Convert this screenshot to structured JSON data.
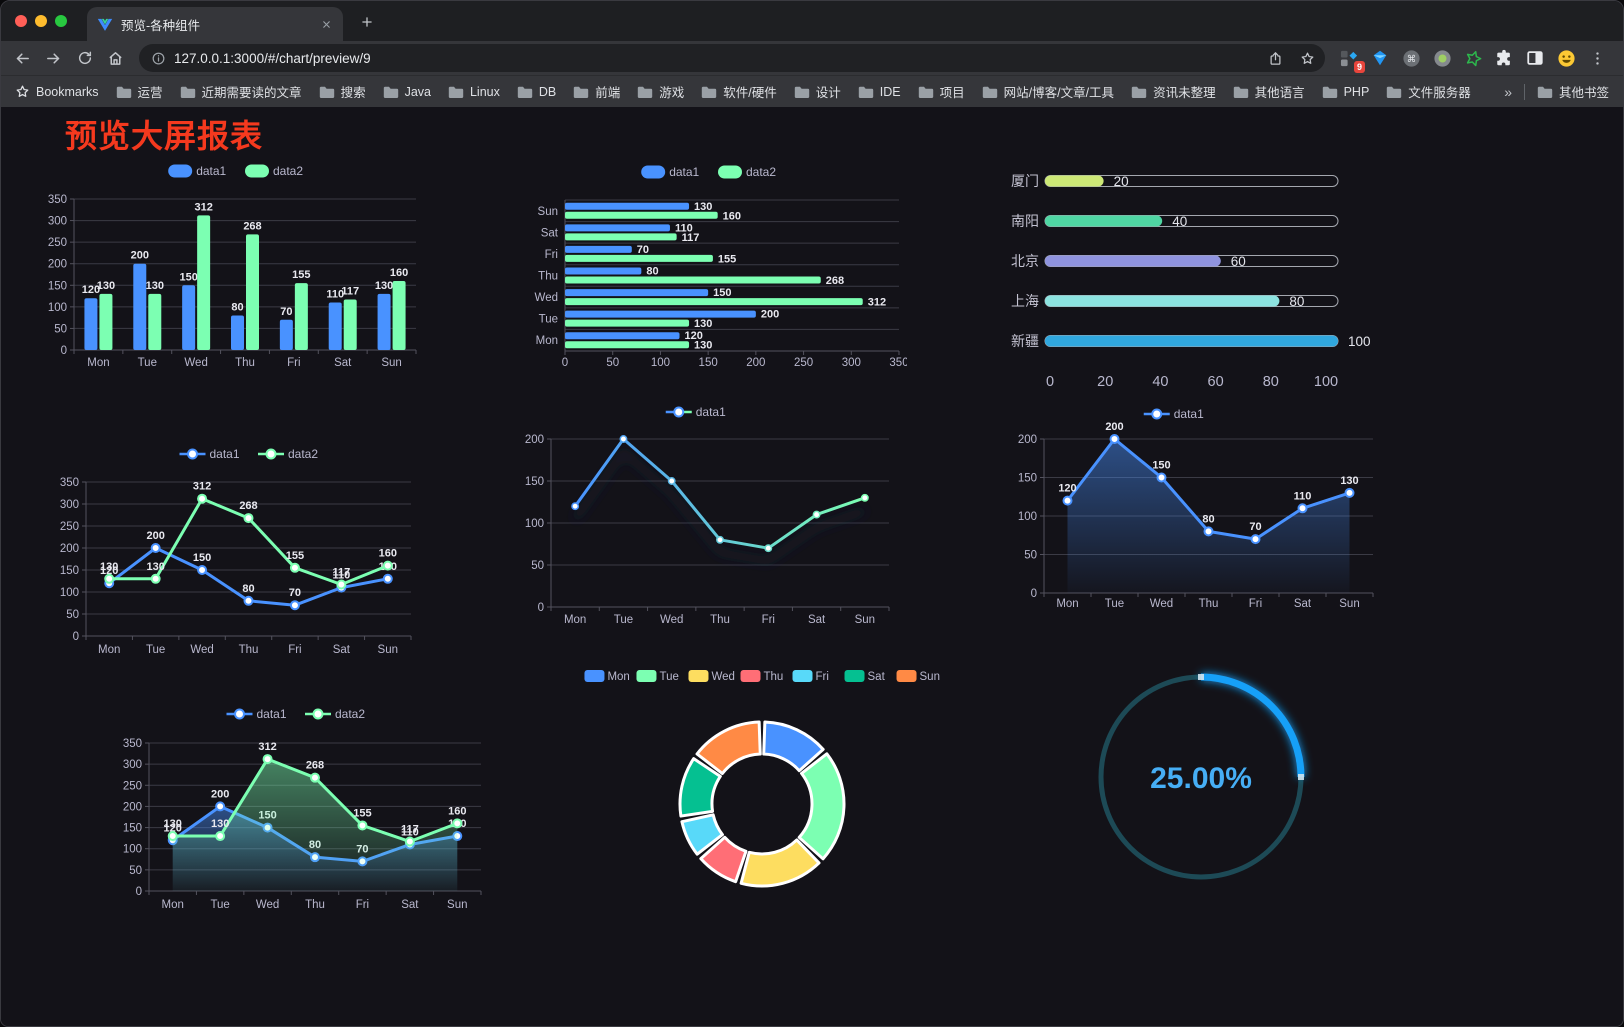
{
  "browser": {
    "tab_title": "预览-各种组件",
    "url": "127.0.0.1:3000/#/chart/preview/9",
    "bookmarks_label": "Bookmarks",
    "bookmarks": [
      "运营",
      "近期需要读的文章",
      "搜索",
      "Java",
      "Linux",
      "DB",
      "前端",
      "游戏",
      "软件/硬件",
      "设计",
      "IDE",
      "项目",
      "网站/博客/文章/工具",
      "资讯未整理",
      "其他语言",
      "PHP",
      "文件服务器"
    ],
    "overflow_chevron": "»",
    "other_bookmarks": "其他书签",
    "extensions_badge": "9",
    "icons": [
      "back-icon",
      "forward-icon",
      "reload-icon",
      "home-icon",
      "site-info-icon",
      "share-icon",
      "bookmark-star-icon",
      "extension-grid-icon",
      "gem-extension-icon",
      "command-extension-icon",
      "dot-extension-icon",
      "star-extension-icon",
      "puzzle-extension-icon",
      "reader-extension-icon",
      "emoji-extension-icon",
      "menu-icon",
      "folder-icon"
    ]
  },
  "page": {
    "title": "预览大屏报表",
    "title_color": "#f5391e",
    "background": "#131218"
  },
  "chart_data": [
    {
      "id": "bar-vertical",
      "type": "bar",
      "categories": [
        "Mon",
        "Tue",
        "Wed",
        "Thu",
        "Fri",
        "Sat",
        "Sun"
      ],
      "series": [
        {
          "name": "data1",
          "color": "#4992ff",
          "values": [
            120,
            200,
            150,
            80,
            70,
            110,
            130
          ]
        },
        {
          "name": "data2",
          "color": "#7cffb2",
          "values": [
            130,
            130,
            312,
            268,
            155,
            117,
            160
          ]
        }
      ],
      "ylim": [
        0,
        350
      ],
      "ytick_step": 50,
      "grid": true,
      "legend_position": "top",
      "value_labels": true
    },
    {
      "id": "bar-horizontal",
      "type": "bar",
      "orientation": "horizontal",
      "categories": [
        "Mon",
        "Tue",
        "Wed",
        "Thu",
        "Fri",
        "Sat",
        "Sun"
      ],
      "series": [
        {
          "name": "data1",
          "color": "#4992ff",
          "values": [
            120,
            200,
            150,
            80,
            70,
            110,
            130
          ]
        },
        {
          "name": "data2",
          "color": "#7cffb2",
          "values": [
            130,
            130,
            312,
            268,
            155,
            117,
            160
          ]
        }
      ],
      "xlim": [
        0,
        350
      ],
      "xtick_step": 50,
      "grid": true,
      "legend_position": "top",
      "value_labels": true
    },
    {
      "id": "progress-bars",
      "type": "bar",
      "variant": "progress",
      "rows": [
        {
          "label": "厦门",
          "value": 20,
          "color": "#cde876"
        },
        {
          "label": "南阳",
          "value": 40,
          "color": "#4fd6a3"
        },
        {
          "label": "北京",
          "value": 60,
          "color": "#8f93de"
        },
        {
          "label": "上海",
          "value": 80,
          "color": "#8ce3e0"
        },
        {
          "label": "新疆",
          "value": 100,
          "color": "#30a7de"
        }
      ],
      "xlim": [
        0,
        100
      ],
      "xticks": [
        0,
        20,
        40,
        60,
        80,
        100
      ]
    },
    {
      "id": "line-two",
      "type": "line",
      "categories": [
        "Mon",
        "Tue",
        "Wed",
        "Thu",
        "Fri",
        "Sat",
        "Sun"
      ],
      "series": [
        {
          "name": "data1",
          "color": "#4992ff",
          "values": [
            120,
            200,
            150,
            80,
            70,
            110,
            130
          ]
        },
        {
          "name": "data2",
          "color": "#7cffb2",
          "values": [
            130,
            130,
            312,
            268,
            155,
            117,
            160
          ]
        }
      ],
      "ylim": [
        0,
        350
      ],
      "ytick_step": 50,
      "grid": true,
      "legend_position": "top",
      "value_labels": true
    },
    {
      "id": "line-gradient",
      "type": "line",
      "categories": [
        "Mon",
        "Tue",
        "Wed",
        "Thu",
        "Fri",
        "Sat",
        "Sun"
      ],
      "series": [
        {
          "name": "data1",
          "gradient": [
            "#4992ff",
            "#7cffb2"
          ],
          "values": [
            120,
            200,
            150,
            80,
            70,
            110,
            130
          ]
        }
      ],
      "ylim": [
        0,
        200
      ],
      "ytick_step": 50,
      "grid": true,
      "legend_position": "top",
      "value_labels": false,
      "shadow": true
    },
    {
      "id": "line-area",
      "type": "area",
      "categories": [
        "Mon",
        "Tue",
        "Wed",
        "Thu",
        "Fri",
        "Sat",
        "Sun"
      ],
      "series": [
        {
          "name": "data1",
          "color": "#4992ff",
          "values": [
            120,
            200,
            150,
            80,
            70,
            110,
            130
          ]
        }
      ],
      "ylim": [
        0,
        200
      ],
      "ytick_step": 50,
      "grid": true,
      "legend_position": "top",
      "value_labels": true
    },
    {
      "id": "line-area-two",
      "type": "area",
      "categories": [
        "Mon",
        "Tue",
        "Wed",
        "Thu",
        "Fri",
        "Sat",
        "Sun"
      ],
      "series": [
        {
          "name": "data1",
          "color": "#4992ff",
          "values": [
            120,
            200,
            150,
            80,
            70,
            110,
            130
          ]
        },
        {
          "name": "data2",
          "color": "#7cffb2",
          "values": [
            130,
            130,
            312,
            268,
            155,
            117,
            160
          ]
        }
      ],
      "ylim": [
        0,
        350
      ],
      "ytick_step": 50,
      "grid": true,
      "legend_position": "top",
      "value_labels": true
    },
    {
      "id": "donut",
      "type": "pie",
      "donut": true,
      "legend_position": "top",
      "categories": [
        "Mon",
        "Tue",
        "Wed",
        "Thu",
        "Fri",
        "Sat",
        "Sun"
      ],
      "values": [
        120,
        200,
        150,
        80,
        70,
        110,
        130
      ],
      "colors": [
        "#4992ff",
        "#7cffb2",
        "#fddd60",
        "#ff6e76",
        "#58d9f9",
        "#05c091",
        "#ff8a45"
      ],
      "border_color": "#ffffff"
    },
    {
      "id": "gauge",
      "type": "gauge",
      "value_percent": 25,
      "label": "25.00%",
      "arc_color": "#18a0f8",
      "track_color": "#1d4a56",
      "text_color": "#46aef5"
    }
  ]
}
